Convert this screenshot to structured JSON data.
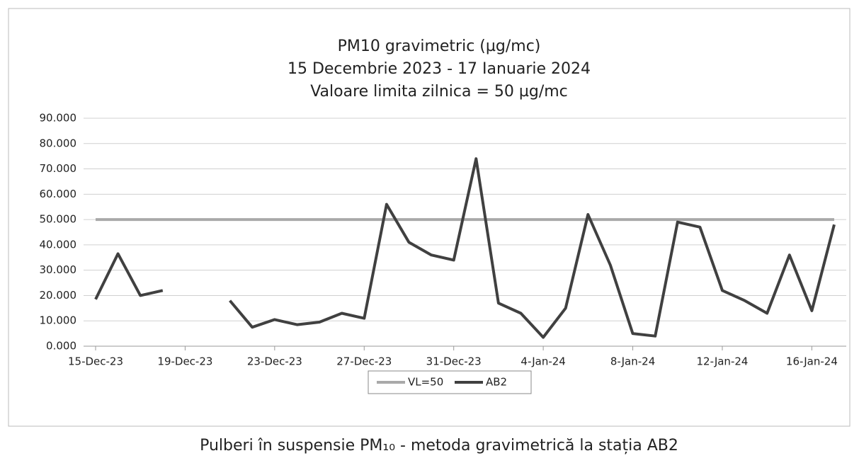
{
  "chart_data": {
    "type": "line",
    "title": [
      "PM10 gravimetric (µg/mc)",
      "15 Decembrie 2023 - 17 Ianuarie 2024",
      "Valoare limita zilnica = 50 µg/mc"
    ],
    "categories": [
      "15-Dec-23",
      null,
      null,
      null,
      "19-Dec-23",
      null,
      null,
      null,
      "23-Dec-23",
      null,
      null,
      null,
      "27-Dec-23",
      null,
      null,
      null,
      "31-Dec-23",
      null,
      null,
      null,
      "4-Jan-24",
      null,
      null,
      null,
      "8-Jan-24",
      null,
      null,
      null,
      "12-Jan-24",
      null,
      null,
      null,
      "16-Jan-24",
      null
    ],
    "series": [
      {
        "name": "VL=50",
        "color": "#a9a9a9",
        "values": [
          50,
          50,
          50,
          50,
          50,
          50,
          50,
          50,
          50,
          50,
          50,
          50,
          50,
          50,
          50,
          50,
          50,
          50,
          50,
          50,
          50,
          50,
          50,
          50,
          50,
          50,
          50,
          50,
          50,
          50,
          50,
          50,
          50,
          50
        ]
      },
      {
        "name": "AB2",
        "color": "#404040",
        "values": [
          18.5,
          36.5,
          20,
          22,
          null,
          null,
          18,
          7.5,
          10.5,
          8.5,
          9.5,
          13,
          11,
          56,
          41,
          36,
          34,
          74,
          17,
          13,
          3.5,
          15,
          52,
          32,
          5,
          4,
          49,
          47,
          22,
          18,
          13,
          36,
          14,
          48
        ]
      }
    ],
    "ylim": [
      0,
      90
    ],
    "yticks": [
      {
        "value": 0,
        "label": "0.000"
      },
      {
        "value": 10,
        "label": "10.000"
      },
      {
        "value": 20,
        "label": "20.000"
      },
      {
        "value": 30,
        "label": "30.000"
      },
      {
        "value": 40,
        "label": "40.000"
      },
      {
        "value": 50,
        "label": "50.000"
      },
      {
        "value": 60,
        "label": "60.000"
      },
      {
        "value": 70,
        "label": "70.000"
      },
      {
        "value": 80,
        "label": "80.000"
      },
      {
        "value": 90,
        "label": "90.000"
      }
    ],
    "grid": true,
    "legend": "bottom",
    "caption": "Pulberi în suspensie PM₁₀ - metoda gravimetrică la stația AB2"
  }
}
